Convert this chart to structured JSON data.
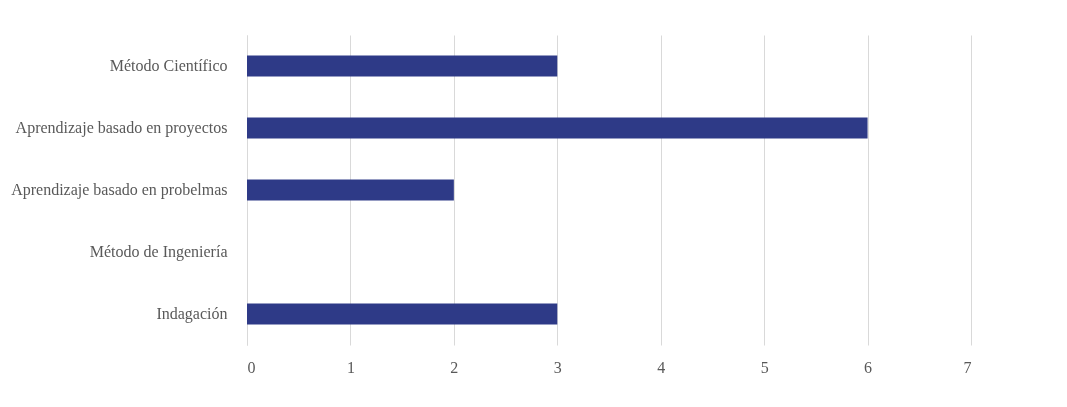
{
  "chart_data": {
    "type": "bar",
    "orientation": "horizontal",
    "categories": [
      "Método Científico",
      "Aprendizaje basado en proyectos",
      "Aprendizaje basado en probelmas",
      "Método de Ingeniería",
      "Indagación"
    ],
    "values": [
      3,
      6,
      2,
      0,
      3
    ],
    "color": "#2e3a87",
    "xlim": [
      0,
      7
    ],
    "xticks": [
      0,
      1,
      2,
      3,
      4,
      5,
      6,
      7
    ],
    "grid": "x"
  }
}
